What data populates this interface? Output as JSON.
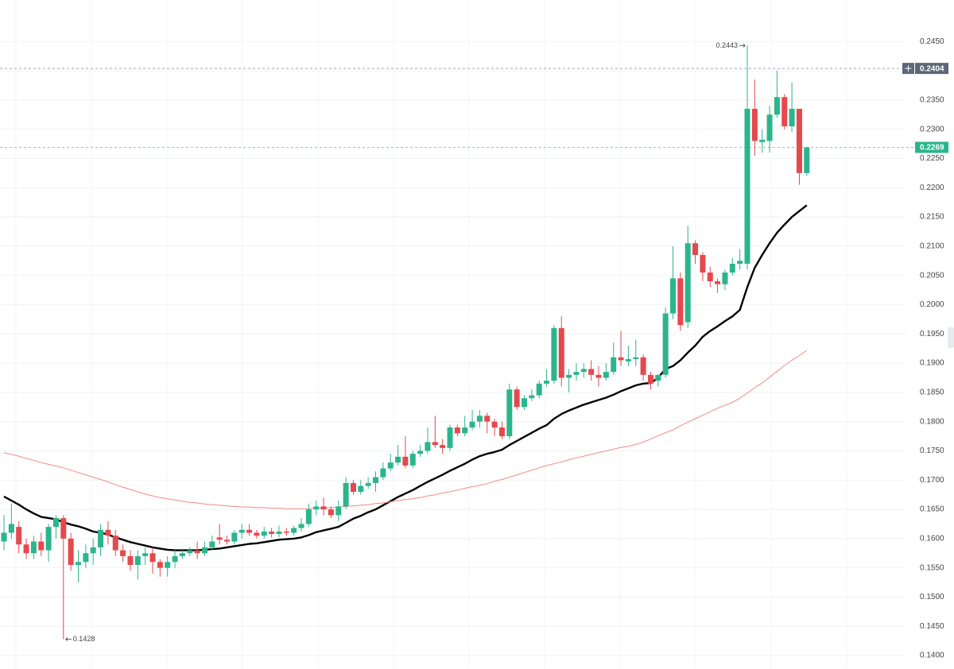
{
  "chart_data": {
    "type": "candlestick",
    "ylim": [
      0.1377,
      0.2521
    ],
    "yticks": [
      {
        "value": 0.14,
        "label": "0.1400"
      },
      {
        "value": 0.145,
        "label": "0.1450"
      },
      {
        "value": 0.15,
        "label": "0.1500"
      },
      {
        "value": 0.155,
        "label": "0.1550"
      },
      {
        "value": 0.16,
        "label": "0.1600"
      },
      {
        "value": 0.165,
        "label": "0.1650"
      },
      {
        "value": 0.17,
        "label": "0.1700"
      },
      {
        "value": 0.175,
        "label": "0.1750"
      },
      {
        "value": 0.18,
        "label": "0.1800"
      },
      {
        "value": 0.185,
        "label": "0.1850"
      },
      {
        "value": 0.19,
        "label": "0.1900"
      },
      {
        "value": 0.195,
        "label": "0.1950"
      },
      {
        "value": 0.2,
        "label": "0.2000"
      },
      {
        "value": 0.205,
        "label": "0.2050"
      },
      {
        "value": 0.21,
        "label": "0.2100"
      },
      {
        "value": 0.215,
        "label": "0.2150"
      },
      {
        "value": 0.22,
        "label": "0.2200"
      },
      {
        "value": 0.225,
        "label": "0.2250"
      },
      {
        "value": 0.23,
        "label": "0.2300"
      },
      {
        "value": 0.235,
        "label": "0.2350"
      },
      {
        "value": 0.24,
        "label": "0.2400"
      },
      {
        "value": 0.245,
        "label": "0.2450"
      }
    ],
    "grid": true,
    "candles": {
      "up_color": "#2bb58c",
      "down_color": "#e5484d",
      "open": [
        0.1595,
        0.161,
        0.162,
        0.159,
        0.1575,
        0.1595,
        0.158,
        0.162,
        0.1635,
        0.16,
        0.1555,
        0.156,
        0.1575,
        0.1585,
        0.1615,
        0.1605,
        0.158,
        0.157,
        0.1555,
        0.157,
        0.1575,
        0.156,
        0.155,
        0.156,
        0.157,
        0.1575,
        0.158,
        0.1575,
        0.1585,
        0.1602,
        0.1598,
        0.1595,
        0.161,
        0.1615,
        0.161,
        0.1605,
        0.1612,
        0.1608,
        0.1612,
        0.161,
        0.1618,
        0.1625,
        0.165,
        0.1655,
        0.165,
        0.164,
        0.1655,
        0.1695,
        0.168,
        0.169,
        0.1695,
        0.1705,
        0.172,
        0.173,
        0.174,
        0.1725,
        0.1745,
        0.175,
        0.1765,
        0.176,
        0.1755,
        0.179,
        0.178,
        0.179,
        0.18,
        0.181,
        0.18,
        0.179,
        0.1775,
        0.1855,
        0.1825,
        0.184,
        0.1845,
        0.1865,
        0.187,
        0.196,
        0.1875,
        0.188,
        0.1885,
        0.189,
        0.188,
        0.1875,
        0.1885,
        0.191,
        0.1903,
        0.1907,
        0.191,
        0.188,
        0.187,
        0.188,
        0.1985,
        0.2045,
        0.197,
        0.2105,
        0.2085,
        0.2055,
        0.204,
        0.2035,
        0.2055,
        0.207,
        0.207,
        0.2335,
        0.2278,
        0.228,
        0.2325,
        0.2355,
        0.2305,
        0.2335,
        0.2225
      ],
      "high": [
        0.164,
        0.166,
        0.163,
        0.16,
        0.1605,
        0.161,
        0.1625,
        0.164,
        0.164,
        0.161,
        0.158,
        0.159,
        0.16,
        0.1625,
        0.163,
        0.1615,
        0.159,
        0.158,
        0.158,
        0.1585,
        0.1585,
        0.1565,
        0.157,
        0.158,
        0.158,
        0.1585,
        0.1595,
        0.1595,
        0.1605,
        0.1625,
        0.1605,
        0.1615,
        0.1625,
        0.1625,
        0.1615,
        0.162,
        0.1618,
        0.1622,
        0.1618,
        0.1622,
        0.1635,
        0.166,
        0.1665,
        0.167,
        0.1655,
        0.1665,
        0.1705,
        0.17,
        0.17,
        0.1705,
        0.1715,
        0.173,
        0.1745,
        0.176,
        0.1775,
        0.175,
        0.176,
        0.179,
        0.181,
        0.177,
        0.1795,
        0.1795,
        0.181,
        0.182,
        0.182,
        0.1815,
        0.1805,
        0.18,
        0.1865,
        0.186,
        0.1845,
        0.1855,
        0.187,
        0.189,
        0.1965,
        0.198,
        0.189,
        0.19,
        0.19,
        0.1905,
        0.1895,
        0.19,
        0.1935,
        0.1955,
        0.193,
        0.194,
        0.1915,
        0.1885,
        0.188,
        0.1995,
        0.21,
        0.2055,
        0.2135,
        0.211,
        0.209,
        0.2065,
        0.2045,
        0.206,
        0.208,
        0.2095,
        0.2443,
        0.2385,
        0.23,
        0.234,
        0.24,
        0.236,
        0.238,
        0.2335,
        0.227
      ],
      "low": [
        0.158,
        0.16,
        0.1575,
        0.1565,
        0.1565,
        0.157,
        0.156,
        0.16,
        0.1428,
        0.1545,
        0.1525,
        0.155,
        0.1555,
        0.157,
        0.159,
        0.157,
        0.156,
        0.1545,
        0.153,
        0.1555,
        0.154,
        0.1535,
        0.1535,
        0.155,
        0.1565,
        0.157,
        0.1565,
        0.157,
        0.158,
        0.159,
        0.159,
        0.159,
        0.16,
        0.1605,
        0.16,
        0.16,
        0.1602,
        0.1602,
        0.1605,
        0.1605,
        0.1612,
        0.162,
        0.164,
        0.164,
        0.1635,
        0.163,
        0.165,
        0.1675,
        0.1675,
        0.1685,
        0.168,
        0.17,
        0.1715,
        0.1725,
        0.172,
        0.172,
        0.174,
        0.1745,
        0.1755,
        0.1745,
        0.175,
        0.1775,
        0.1775,
        0.1785,
        0.179,
        0.178,
        0.1775,
        0.177,
        0.177,
        0.182,
        0.182,
        0.1835,
        0.184,
        0.186,
        0.1865,
        0.186,
        0.185,
        0.187,
        0.1875,
        0.187,
        0.186,
        0.187,
        0.188,
        0.1895,
        0.1895,
        0.1895,
        0.187,
        0.1855,
        0.186,
        0.1875,
        0.1975,
        0.1955,
        0.196,
        0.207,
        0.204,
        0.203,
        0.202,
        0.2025,
        0.205,
        0.206,
        0.206,
        0.2255,
        0.226,
        0.226,
        0.232,
        0.23,
        0.2295,
        0.2205,
        0.222
      ],
      "close": [
        0.161,
        0.1625,
        0.159,
        0.1575,
        0.1595,
        0.158,
        0.162,
        0.1635,
        0.16,
        0.1555,
        0.156,
        0.1575,
        0.1585,
        0.1615,
        0.1605,
        0.158,
        0.157,
        0.1555,
        0.157,
        0.1575,
        0.156,
        0.155,
        0.156,
        0.157,
        0.1575,
        0.158,
        0.1575,
        0.1585,
        0.1595,
        0.1598,
        0.1595,
        0.161,
        0.1615,
        0.161,
        0.1605,
        0.1612,
        0.1608,
        0.1612,
        0.161,
        0.1618,
        0.1625,
        0.165,
        0.1655,
        0.165,
        0.164,
        0.1655,
        0.1695,
        0.168,
        0.169,
        0.1695,
        0.1705,
        0.172,
        0.173,
        0.174,
        0.1725,
        0.1745,
        0.175,
        0.1765,
        0.176,
        0.1755,
        0.179,
        0.178,
        0.179,
        0.18,
        0.181,
        0.18,
        0.179,
        0.1775,
        0.1855,
        0.1825,
        0.184,
        0.1845,
        0.1865,
        0.187,
        0.196,
        0.1875,
        0.188,
        0.1885,
        0.189,
        0.188,
        0.1875,
        0.1885,
        0.191,
        0.1905,
        0.1907,
        0.191,
        0.188,
        0.1865,
        0.188,
        0.1985,
        0.2045,
        0.1965,
        0.2105,
        0.2085,
        0.2055,
        0.204,
        0.2035,
        0.2055,
        0.207,
        0.2075,
        0.2335,
        0.228,
        0.2282,
        0.2325,
        0.2355,
        0.2305,
        0.2335,
        0.2225,
        0.2269
      ]
    },
    "lines": [
      {
        "color": "#000000",
        "values": [
          0.1672,
          0.1665,
          0.1658,
          0.165,
          0.1643,
          0.1637,
          0.1635,
          0.1633,
          0.1628,
          0.1624,
          0.1621,
          0.1617,
          0.1612,
          0.161,
          0.1607,
          0.1602,
          0.1598,
          0.1594,
          0.1591,
          0.1588,
          0.1585,
          0.1583,
          0.1581,
          0.158,
          0.158,
          0.158,
          0.158,
          0.1581,
          0.1582,
          0.1583,
          0.1585,
          0.1587,
          0.1589,
          0.1591,
          0.1592,
          0.1594,
          0.1596,
          0.1598,
          0.1599,
          0.16,
          0.1602,
          0.1606,
          0.1611,
          0.1614,
          0.1617,
          0.162,
          0.1627,
          0.1634,
          0.1639,
          0.1645,
          0.165,
          0.1657,
          0.1664,
          0.1671,
          0.1677,
          0.1683,
          0.169,
          0.1697,
          0.1703,
          0.1709,
          0.1716,
          0.1722,
          0.1728,
          0.1735,
          0.1741,
          0.1745,
          0.1748,
          0.1752,
          0.176,
          0.1767,
          0.1774,
          0.1781,
          0.1788,
          0.1794,
          0.1805,
          0.1813,
          0.1819,
          0.1824,
          0.1829,
          0.1833,
          0.1837,
          0.1841,
          0.1846,
          0.1852,
          0.1857,
          0.1862,
          0.1865,
          0.1866,
          0.1875,
          0.189,
          0.1895,
          0.1905,
          0.1918,
          0.193,
          0.1945,
          0.1955,
          0.1963,
          0.1972,
          0.198,
          0.1991,
          0.203,
          0.2063,
          0.2085,
          0.2105,
          0.2123,
          0.2137,
          0.215,
          0.216,
          0.217
        ]
      },
      {
        "color": "#f28b82",
        "values": [
          0.1747,
          0.1744,
          0.1741,
          0.1737,
          0.1734,
          0.173,
          0.1727,
          0.1724,
          0.1721,
          0.1717,
          0.1713,
          0.1709,
          0.1705,
          0.1701,
          0.1697,
          0.1692,
          0.1688,
          0.1684,
          0.168,
          0.1676,
          0.1673,
          0.167,
          0.1668,
          0.1666,
          0.1664,
          0.1662,
          0.1661,
          0.1659,
          0.1658,
          0.1657,
          0.1656,
          0.1655,
          0.1654,
          0.1654,
          0.1653,
          0.1653,
          0.1652,
          0.1652,
          0.1651,
          0.1651,
          0.1651,
          0.1651,
          0.1652,
          0.1652,
          0.1653,
          0.1654,
          0.1655,
          0.1656,
          0.1657,
          0.1658,
          0.166,
          0.1661,
          0.1663,
          0.1665,
          0.1667,
          0.1668,
          0.167,
          0.1673,
          0.1675,
          0.1678,
          0.168,
          0.1683,
          0.1686,
          0.1689,
          0.1691,
          0.1694,
          0.1698,
          0.1701,
          0.1705,
          0.1709,
          0.1713,
          0.1717,
          0.1721,
          0.1725,
          0.1728,
          0.1731,
          0.1735,
          0.1738,
          0.1741,
          0.1744,
          0.1747,
          0.175,
          0.1753,
          0.1756,
          0.1758,
          0.1761,
          0.1765,
          0.177,
          0.1776,
          0.1781,
          0.1786,
          0.1793,
          0.1799,
          0.1805,
          0.1811,
          0.1817,
          0.1823,
          0.1828,
          0.1833,
          0.184,
          0.1849,
          0.1858,
          0.1866,
          0.1876,
          0.1886,
          0.1896,
          0.1905,
          0.1913,
          0.1922
        ]
      }
    ],
    "price_lines": [
      {
        "value": 0.2404,
        "label": "0.2404",
        "color": "#5d6878"
      },
      {
        "value": 0.2269,
        "label": "0.2269",
        "color": "#2bb58c"
      }
    ],
    "annotations": [
      {
        "value": 0.2443,
        "label": "0.2443"
      },
      {
        "value": 0.1428,
        "label": "0.1428"
      }
    ]
  }
}
